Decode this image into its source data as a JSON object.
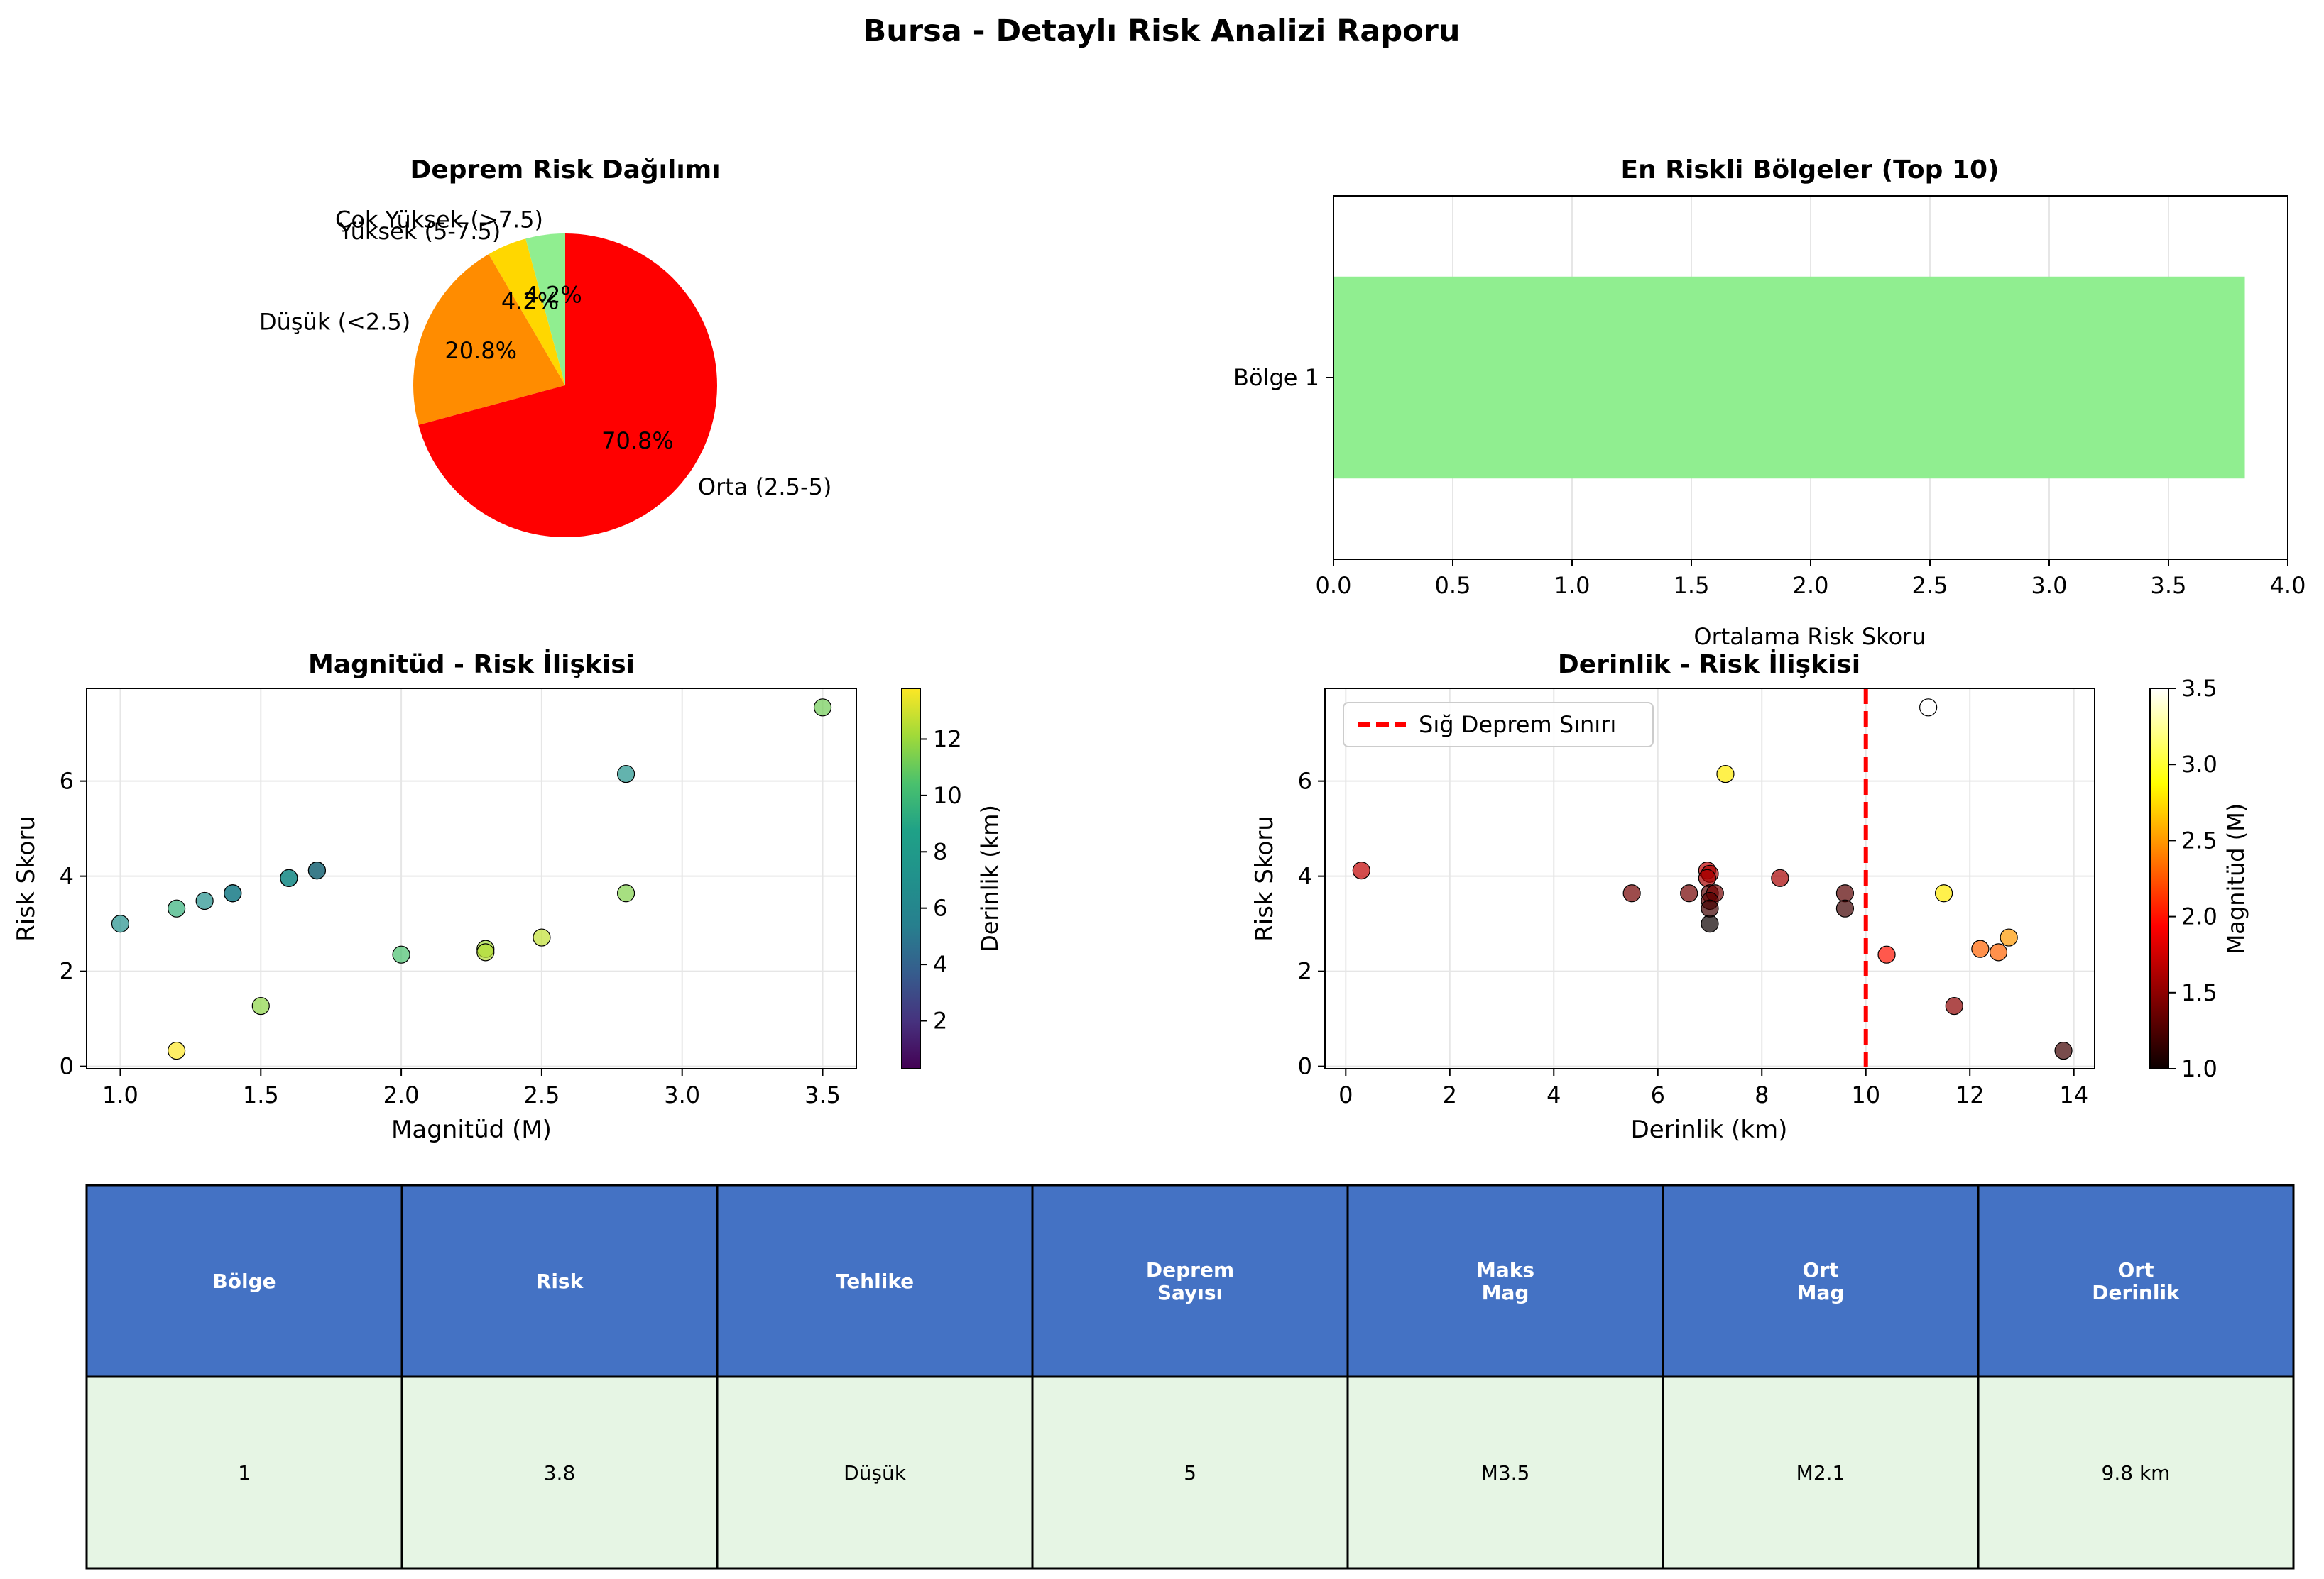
{
  "title": "Bursa - Detaylı Risk Analizi Raporu",
  "chart_data": [
    {
      "type": "pie",
      "title": "Deprem Risk Dağılımı",
      "slices": [
        {
          "label": "Çok Yüksek (>7.5)",
          "value": 4.2,
          "pct_label": "4.2%",
          "color": "#90ee90"
        },
        {
          "label": "Yüksek (5-7.5)",
          "value": 4.2,
          "pct_label": "4.2%",
          "color": "#ffd700"
        },
        {
          "label": "Düşük (<2.5)",
          "value": 20.8,
          "pct_label": "20.8%",
          "color": "#ff8c00"
        },
        {
          "label": "Orta (2.5-5)",
          "value": 70.8,
          "pct_label": "70.8%",
          "color": "#ff0000"
        }
      ]
    },
    {
      "type": "bar",
      "orientation": "horizontal",
      "title": "En Riskli Bölgeler (Top 10)",
      "categories": [
        "Bölge 1"
      ],
      "values": [
        3.82
      ],
      "xlabel": "Ortalama Risk Skoru",
      "xlim": [
        0,
        4
      ],
      "xticks": [
        "0.0",
        "0.5",
        "1.0",
        "1.5",
        "2.0",
        "2.5",
        "3.0",
        "3.5",
        "4.0"
      ],
      "color": "#90ee90",
      "grid": true
    },
    {
      "type": "scatter",
      "title": "Magnitüd - Risk İlişkisi",
      "xlabel": "Magnitüd (M)",
      "ylabel": "Risk Skoru",
      "xlim": [
        0.88,
        3.62
      ],
      "ylim": [
        -0.05,
        7.95
      ],
      "xticks": [
        "1.0",
        "1.5",
        "2.0",
        "2.5",
        "3.0",
        "3.5"
      ],
      "yticks": [
        "0",
        "2",
        "4",
        "6"
      ],
      "colorbar_label": "Derinlik (km)",
      "colorbar_range": [
        0.3,
        13.8
      ],
      "colorbar_ticks": [
        "2",
        "4",
        "6",
        "8",
        "10",
        "12"
      ],
      "colormap": "viridis",
      "grid": true,
      "points": [
        {
          "x": 1.0,
          "y": 3.0,
          "c": 7.0
        },
        {
          "x": 1.2,
          "y": 3.32,
          "c": 9.6
        },
        {
          "x": 1.2,
          "y": 0.33,
          "c": 13.8
        },
        {
          "x": 1.3,
          "y": 3.48,
          "c": 7.0
        },
        {
          "x": 1.4,
          "y": 3.64,
          "c": 6.6
        },
        {
          "x": 1.4,
          "y": 3.64,
          "c": 5.5
        },
        {
          "x": 1.5,
          "y": 1.27,
          "c": 11.7
        },
        {
          "x": 1.6,
          "y": 3.96,
          "c": 7.0
        },
        {
          "x": 1.6,
          "y": 3.96,
          "c": 6.9
        },
        {
          "x": 1.7,
          "y": 4.12,
          "c": 0.3
        },
        {
          "x": 1.7,
          "y": 4.12,
          "c": 7.0
        },
        {
          "x": 2.0,
          "y": 2.35,
          "c": 10.4
        },
        {
          "x": 2.3,
          "y": 2.47,
          "c": 12.2
        },
        {
          "x": 2.3,
          "y": 2.4,
          "c": 12.5
        },
        {
          "x": 2.5,
          "y": 2.71,
          "c": 12.7
        },
        {
          "x": 2.8,
          "y": 6.15,
          "c": 7.3
        },
        {
          "x": 2.8,
          "y": 3.64,
          "c": 11.5
        },
        {
          "x": 3.5,
          "y": 7.55,
          "c": 11.2
        }
      ]
    },
    {
      "type": "scatter",
      "title": "Derinlik - Risk İlişkisi",
      "xlabel": "Derinlik (km)",
      "ylabel": "Risk Skoru",
      "xlim": [
        -0.4,
        14.4
      ],
      "ylim": [
        -0.05,
        7.95
      ],
      "xticks": [
        "0",
        "2",
        "4",
        "6",
        "8",
        "10",
        "12",
        "14"
      ],
      "yticks": [
        "0",
        "2",
        "4",
        "6"
      ],
      "colorbar_label": "Magnitüd (M)",
      "colorbar_range": [
        1.0,
        3.5
      ],
      "colorbar_ticks": [
        "1.0",
        "1.5",
        "2.0",
        "2.5",
        "3.0",
        "3.5"
      ],
      "colormap": "hot",
      "grid": true,
      "reference_line": {
        "x": 10,
        "label": "Sığ Deprem Sınırı",
        "color": "#ff0000"
      },
      "points": [
        {
          "x": 0.3,
          "y": 4.12,
          "c": 1.7
        },
        {
          "x": 5.5,
          "y": 3.64,
          "c": 1.4
        },
        {
          "x": 6.6,
          "y": 3.64,
          "c": 1.4
        },
        {
          "x": 6.95,
          "y": 4.12,
          "c": 1.7
        },
        {
          "x": 7.0,
          "y": 4.05,
          "c": 1.6
        },
        {
          "x": 6.95,
          "y": 3.96,
          "c": 1.6
        },
        {
          "x": 7.0,
          "y": 3.64,
          "c": 1.3
        },
        {
          "x": 7.1,
          "y": 3.64,
          "c": 1.4
        },
        {
          "x": 7.0,
          "y": 3.48,
          "c": 1.3
        },
        {
          "x": 7.0,
          "y": 3.32,
          "c": 1.2
        },
        {
          "x": 7.0,
          "y": 3.0,
          "c": 1.0
        },
        {
          "x": 7.3,
          "y": 6.15,
          "c": 2.8
        },
        {
          "x": 8.35,
          "y": 3.96,
          "c": 1.6
        },
        {
          "x": 9.6,
          "y": 3.64,
          "c": 1.3
        },
        {
          "x": 9.6,
          "y": 3.32,
          "c": 1.2
        },
        {
          "x": 10.4,
          "y": 2.35,
          "c": 2.0
        },
        {
          "x": 11.2,
          "y": 7.55,
          "c": 3.5
        },
        {
          "x": 11.5,
          "y": 3.64,
          "c": 2.8
        },
        {
          "x": 11.7,
          "y": 1.27,
          "c": 1.5
        },
        {
          "x": 12.2,
          "y": 2.47,
          "c": 2.3
        },
        {
          "x": 12.55,
          "y": 2.4,
          "c": 2.3
        },
        {
          "x": 12.75,
          "y": 2.71,
          "c": 2.5
        },
        {
          "x": 13.8,
          "y": 0.33,
          "c": 1.2
        }
      ]
    },
    {
      "type": "table",
      "header_color": "#4472c4",
      "row_color": "#e6f5e4",
      "columns": [
        [
          "Bölge"
        ],
        [
          "Risk"
        ],
        [
          "Tehlike"
        ],
        [
          "Deprem",
          "Sayısı"
        ],
        [
          "Maks",
          "Mag"
        ],
        [
          "Ort",
          "Mag"
        ],
        [
          "Ort",
          "Derinlik"
        ]
      ],
      "rows": [
        [
          "1",
          "3.8",
          "Düşük",
          "5",
          "M3.5",
          "M2.1",
          "9.8 km"
        ]
      ]
    }
  ]
}
